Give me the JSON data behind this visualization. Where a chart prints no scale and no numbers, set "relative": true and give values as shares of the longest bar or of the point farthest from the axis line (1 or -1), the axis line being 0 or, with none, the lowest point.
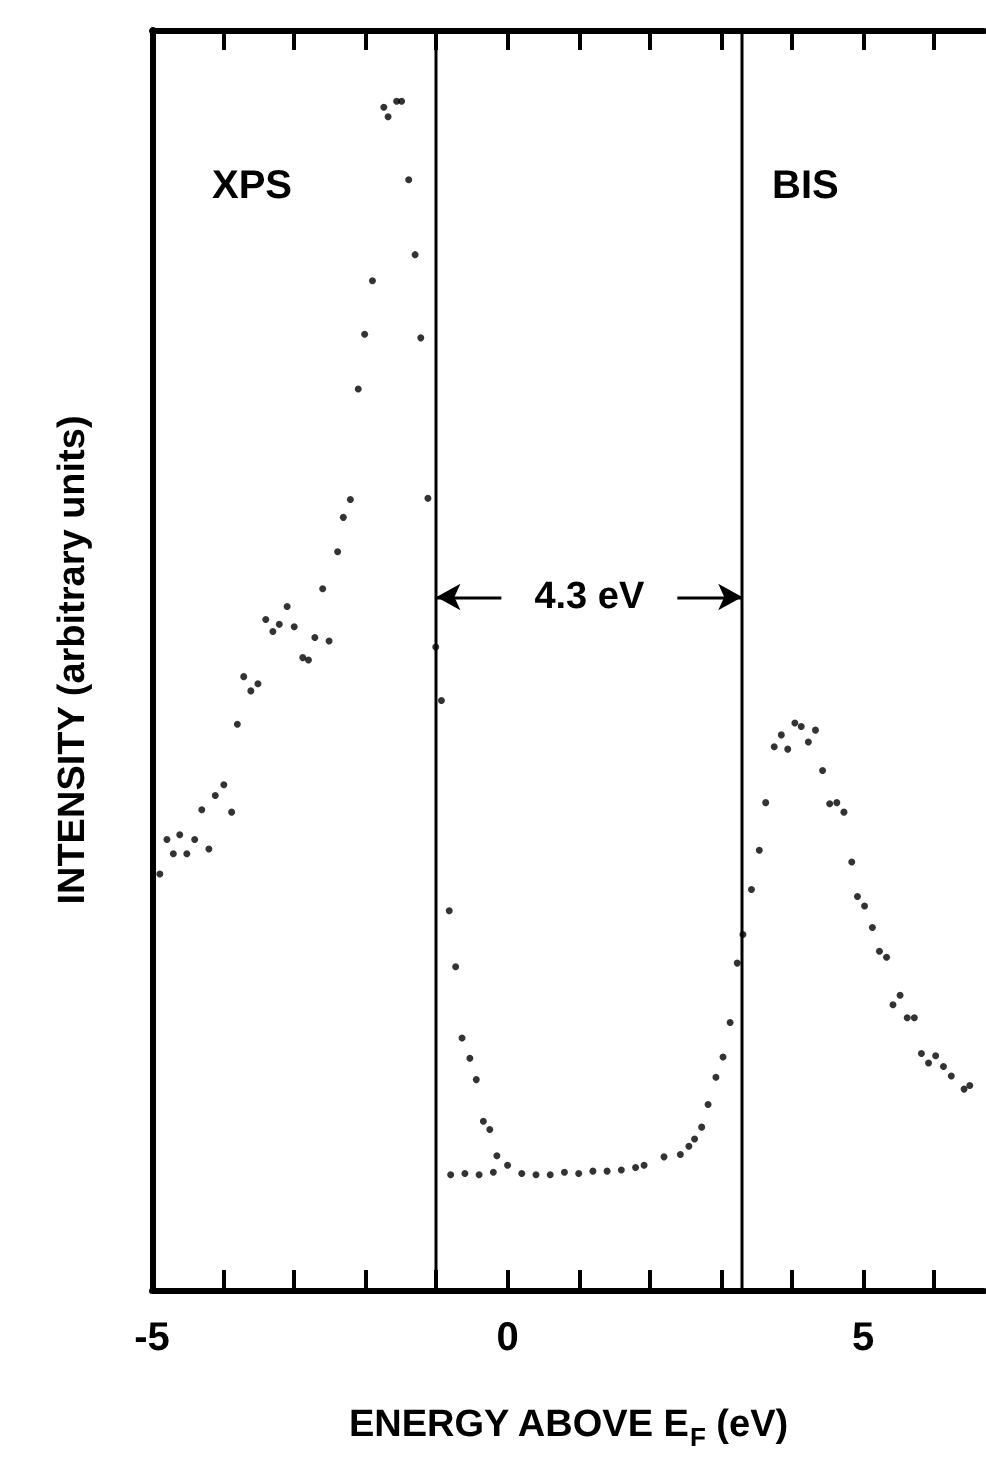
{
  "chart_data": {
    "type": "scatter",
    "relative": true,
    "xlabel": "ENERGY ABOVE E$_{F}$ (eV)",
    "ylabel": "INTENSITY (arbitrary units)",
    "xlim": [
      -5,
      6.7
    ],
    "xticks": [
      -5,
      {
        "value": -4,
        "label": null
      },
      {
        "value": -3,
        "label": null
      },
      {
        "value": -2,
        "label": null
      },
      {
        "value": -1,
        "label": null
      },
      0,
      {
        "value": 1,
        "label": null
      },
      {
        "value": 2,
        "label": null
      },
      {
        "value": 3,
        "label": null
      },
      {
        "value": 4,
        "label": null
      },
      5,
      {
        "value": 6,
        "label": null
      }
    ],
    "marker": "circle",
    "grid": false,
    "series": [
      {
        "color": "#000000",
        "x": [
          -4.89,
          -4.79,
          -4.7,
          -4.61,
          -4.51,
          -4.4,
          -4.3,
          -4.2,
          -4.11,
          -3.99,
          -3.88,
          -3.8,
          -3.71,
          -3.61,
          -3.51,
          -3.4,
          -3.3,
          -3.21,
          -3.1,
          -3.0,
          -2.88,
          -2.8,
          -2.71,
          -2.6,
          -2.51,
          -2.39,
          -2.31,
          -2.21,
          -2.1,
          -2.01,
          -1.9,
          -1.74,
          -1.68,
          -1.56,
          -1.49,
          -1.39,
          -1.3,
          -1.22,
          -1.12,
          -1.01,
          -0.93,
          -0.82,
          -0.73,
          -0.64,
          -0.53,
          -0.44,
          -0.34,
          -0.25,
          -0.15,
          -0.8,
          -0.6,
          -0.4,
          -0.2,
          0,
          0.2,
          0.4,
          0.6,
          0.8,
          1.0,
          1.2,
          1.4,
          1.6,
          1.8,
          1.92,
          2.2,
          2.43,
          2.55,
          2.63,
          2.73,
          2.82,
          2.93,
          3.03,
          3.13,
          3.23,
          3.31,
          3.43,
          3.54,
          3.63,
          3.75,
          3.85,
          3.94,
          4.04,
          4.13,
          4.23,
          4.33,
          4.43,
          4.53,
          4.63,
          4.73,
          4.84,
          4.92,
          5.02,
          5.13,
          5.23,
          5.33,
          5.42,
          5.52,
          5.62,
          5.72,
          5.82,
          5.92,
          6.02,
          6.13,
          6.24,
          6.42,
          6.5
        ],
        "values": [
          0.35,
          0.379,
          0.367,
          0.383,
          0.367,
          0.379,
          0.404,
          0.371,
          0.416,
          0.425,
          0.402,
          0.476,
          0.516,
          0.504,
          0.51,
          0.564,
          0.554,
          0.56,
          0.575,
          0.558,
          0.532,
          0.53,
          0.549,
          0.59,
          0.546,
          0.621,
          0.65,
          0.665,
          0.758,
          0.804,
          0.849,
          0.995,
          0.987,
          1.0,
          1.0,
          0.934,
          0.871,
          0.801,
          0.666,
          0.541,
          0.496,
          0.319,
          0.272,
          0.212,
          0.195,
          0.177,
          0.142,
          0.135,
          0.113,
          0.097,
          0.098,
          0.097,
          0.099,
          0.105,
          0.098,
          0.097,
          0.097,
          0.099,
          0.098,
          0.1,
          0.1,
          0.101,
          0.103,
          0.105,
          0.112,
          0.114,
          0.121,
          0.127,
          0.137,
          0.156,
          0.179,
          0.196,
          0.225,
          0.275,
          0.299,
          0.337,
          0.37,
          0.41,
          0.457,
          0.467,
          0.455,
          0.477,
          0.474,
          0.461,
          0.471,
          0.437,
          0.409,
          0.41,
          0.402,
          0.36,
          0.331,
          0.323,
          0.305,
          0.285,
          0.28,
          0.24,
          0.248,
          0.229,
          0.229,
          0.199,
          0.191,
          0.197,
          0.188,
          0.18,
          0.169,
          0.172
        ]
      }
    ],
    "ref_lines": [
      {
        "axis": "x",
        "value": -1.0,
        "color": "#000000",
        "line_style": "solid"
      },
      {
        "axis": "x",
        "value": 3.3,
        "color": "#000000",
        "line_style": "solid"
      }
    ],
    "annotations": [
      "XPS",
      "BIS",
      "4.3 eV"
    ]
  }
}
